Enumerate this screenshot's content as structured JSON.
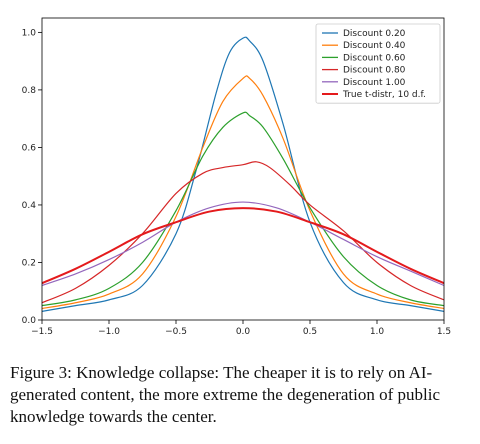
{
  "chart_data": {
    "type": "line",
    "title": "",
    "xlabel": "",
    "ylabel": "",
    "xlim": [
      -1.5,
      1.5
    ],
    "ylim": [
      0.0,
      1.05
    ],
    "xticks": [
      "−1.5",
      "−1.0",
      "−0.5",
      "0.0",
      "0.5",
      "1.0",
      "1.5"
    ],
    "yticks": [
      "0.0",
      "0.2",
      "0.4",
      "0.6",
      "0.8",
      "1.0"
    ],
    "grid": false,
    "legend_position": "top-right",
    "series": [
      {
        "name": "Discount 0.20",
        "color": "#1f77b4",
        "x": [
          -1.5,
          -1.25,
          -1.0,
          -0.75,
          -0.5,
          -0.35,
          -0.2,
          -0.1,
          0.0,
          0.05,
          0.15,
          0.3,
          0.5,
          0.75,
          1.0,
          1.25,
          1.5
        ],
        "y": [
          0.03,
          0.05,
          0.07,
          0.12,
          0.3,
          0.52,
          0.79,
          0.93,
          0.98,
          0.97,
          0.9,
          0.68,
          0.34,
          0.13,
          0.07,
          0.05,
          0.03
        ]
      },
      {
        "name": "Discount 0.40",
        "color": "#ff7f0e",
        "x": [
          -1.5,
          -1.25,
          -1.0,
          -0.75,
          -0.5,
          -0.3,
          -0.15,
          0.0,
          0.05,
          0.15,
          0.3,
          0.5,
          0.75,
          1.0,
          1.25,
          1.5
        ],
        "y": [
          0.04,
          0.06,
          0.09,
          0.16,
          0.36,
          0.6,
          0.76,
          0.84,
          0.84,
          0.78,
          0.63,
          0.38,
          0.16,
          0.09,
          0.06,
          0.04
        ]
      },
      {
        "name": "Discount 0.60",
        "color": "#2ca02c",
        "x": [
          -1.5,
          -1.25,
          -1.0,
          -0.75,
          -0.5,
          -0.3,
          -0.15,
          0.0,
          0.05,
          0.15,
          0.3,
          0.5,
          0.75,
          1.0,
          1.25,
          1.5
        ],
        "y": [
          0.05,
          0.07,
          0.11,
          0.2,
          0.38,
          0.57,
          0.67,
          0.72,
          0.71,
          0.67,
          0.56,
          0.39,
          0.22,
          0.12,
          0.07,
          0.05
        ]
      },
      {
        "name": "Discount 0.80",
        "color": "#d62728",
        "x": [
          -1.5,
          -1.25,
          -1.0,
          -0.75,
          -0.5,
          -0.3,
          -0.15,
          0.0,
          0.1,
          0.2,
          0.35,
          0.5,
          0.75,
          1.0,
          1.25,
          1.5
        ],
        "y": [
          0.06,
          0.11,
          0.19,
          0.3,
          0.44,
          0.51,
          0.53,
          0.54,
          0.55,
          0.53,
          0.47,
          0.4,
          0.31,
          0.2,
          0.12,
          0.07
        ]
      },
      {
        "name": "Discount 1.00",
        "color": "#9467bd",
        "x": [
          -1.5,
          -1.25,
          -1.0,
          -0.75,
          -0.5,
          -0.25,
          0.0,
          0.25,
          0.5,
          0.75,
          1.0,
          1.25,
          1.5
        ],
        "y": [
          0.12,
          0.16,
          0.21,
          0.27,
          0.34,
          0.39,
          0.41,
          0.39,
          0.34,
          0.28,
          0.22,
          0.17,
          0.12
        ]
      },
      {
        "name": "True t-distr, 10 d.f.",
        "color": "#e41a1c",
        "width": 2,
        "x": [
          -1.5,
          -1.25,
          -1.0,
          -0.75,
          -0.5,
          -0.25,
          0.0,
          0.25,
          0.5,
          0.75,
          1.0,
          1.25,
          1.5
        ],
        "y": [
          0.128,
          0.178,
          0.237,
          0.298,
          0.34,
          0.377,
          0.389,
          0.377,
          0.34,
          0.298,
          0.237,
          0.178,
          0.128
        ]
      }
    ]
  },
  "caption": "Figure 3: Knowledge collapse: The cheaper it is to rely on AI-generated content, the more extreme the degeneration of public knowledge towards the center."
}
